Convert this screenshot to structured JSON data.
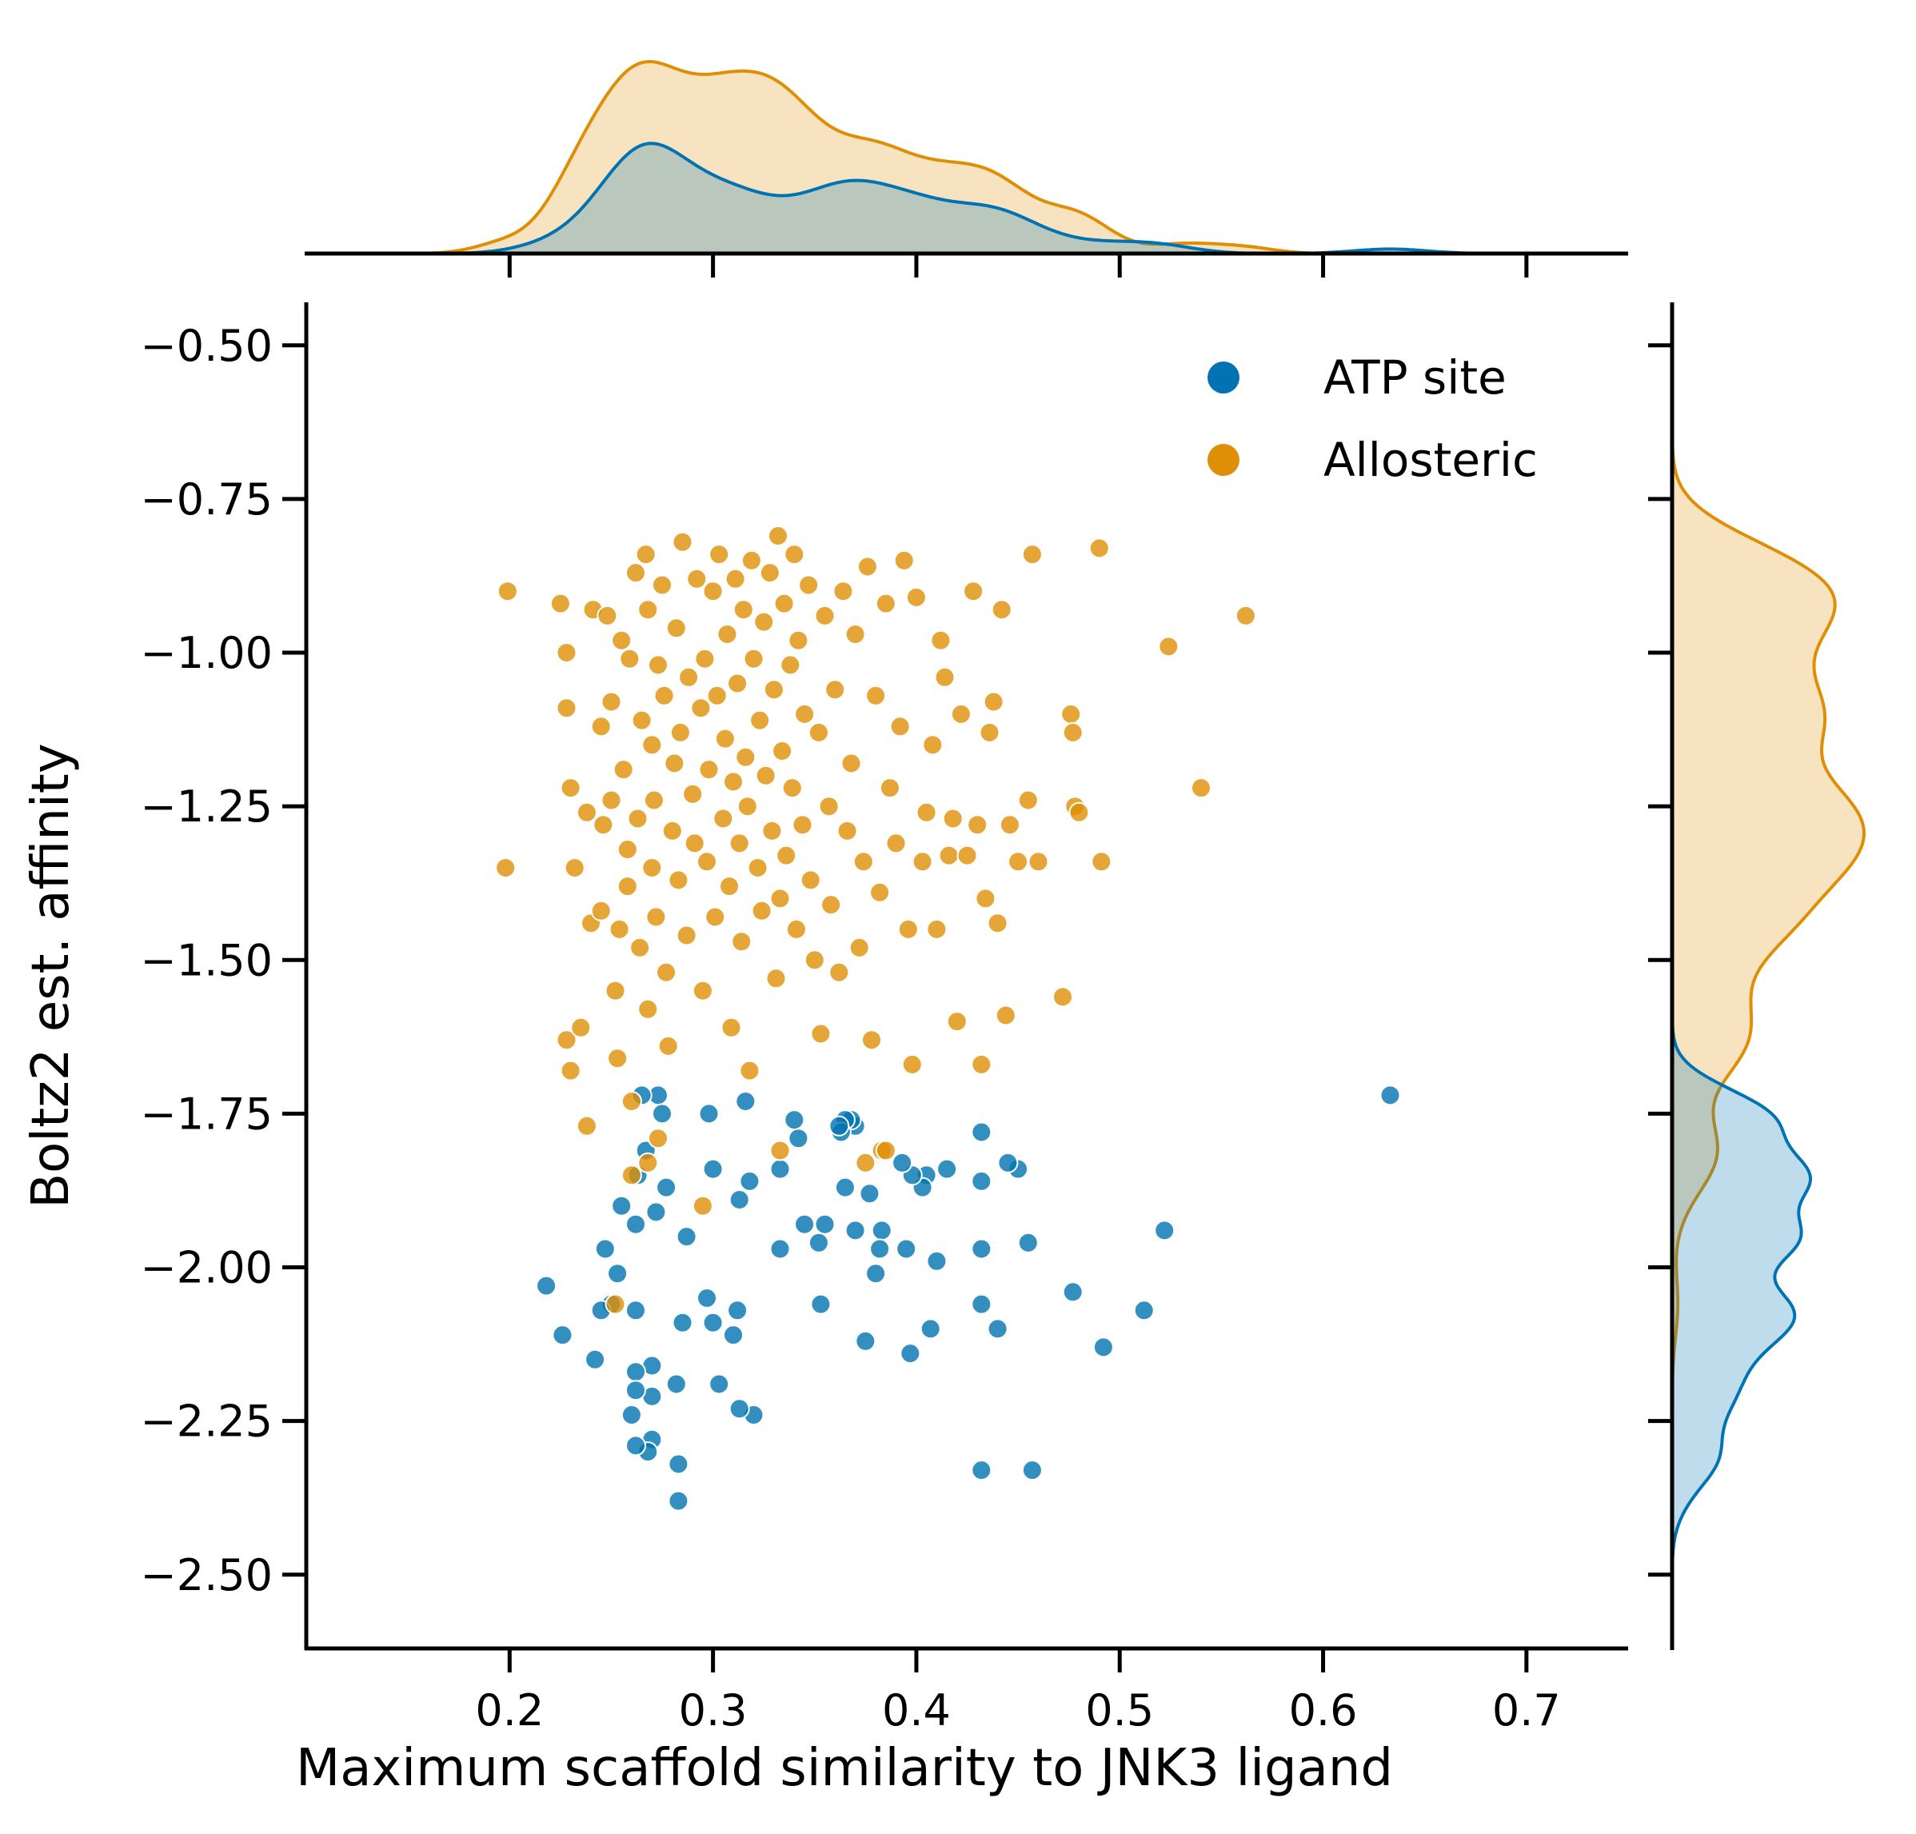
{
  "chart_data": {
    "type": "scatter",
    "xlabel": "Maximum scaffold similarity to JNK3 ligand",
    "ylabel": "Boltz2 est. affinity",
    "xlim": [
      0.1,
      0.75
    ],
    "ylim": [
      -2.62,
      -0.43
    ],
    "x_ticks": [
      0.2,
      0.3,
      0.4,
      0.5,
      0.6,
      0.7
    ],
    "x_tick_labels": [
      "0.2",
      "0.3",
      "0.4",
      "0.5",
      "0.6",
      "0.7"
    ],
    "y_ticks": [
      -0.5,
      -0.75,
      -1.0,
      -1.25,
      -1.5,
      -1.75,
      -2.0,
      -2.25,
      -2.5
    ],
    "y_tick_labels": [
      "−0.50",
      "−0.75",
      "−1.00",
      "−1.25",
      "−1.50",
      "−1.75",
      "−2.00",
      "−2.25",
      "−2.50"
    ],
    "grid": false,
    "legend_position": "top-right",
    "marginals": "kde on top (x) and right (y), filled per series",
    "colors": {
      "ATP site": "#0173b2",
      "Allosteric": "#de8f05"
    },
    "series": [
      {
        "name": "ATP site",
        "color": "#0173b2",
        "points": [
          [
            0.633,
            -1.72
          ],
          [
            0.522,
            -1.94
          ],
          [
            0.512,
            -2.07
          ],
          [
            0.492,
            -2.13
          ],
          [
            0.477,
            -2.04
          ],
          [
            0.457,
            -2.33
          ],
          [
            0.432,
            -2.33
          ],
          [
            0.455,
            -1.96
          ],
          [
            0.45,
            -1.84
          ],
          [
            0.445,
            -1.83
          ],
          [
            0.432,
            -1.78
          ],
          [
            0.432,
            -1.86
          ],
          [
            0.432,
            -1.97
          ],
          [
            0.432,
            -2.06
          ],
          [
            0.44,
            -2.1
          ],
          [
            0.415,
            -1.84
          ],
          [
            0.41,
            -1.99
          ],
          [
            0.407,
            -2.1
          ],
          [
            0.405,
            -1.85
          ],
          [
            0.403,
            -1.87
          ],
          [
            0.398,
            -1.85
          ],
          [
            0.397,
            -2.14
          ],
          [
            0.395,
            -1.97
          ],
          [
            0.393,
            -1.83
          ],
          [
            0.383,
            -1.94
          ],
          [
            0.382,
            -1.97
          ],
          [
            0.38,
            -2.01
          ],
          [
            0.377,
            -1.88
          ],
          [
            0.375,
            -2.12
          ],
          [
            0.37,
            -1.77
          ],
          [
            0.368,
            -1.76
          ],
          [
            0.365,
            -1.76
          ],
          [
            0.363,
            -1.78
          ],
          [
            0.365,
            -1.87
          ],
          [
            0.37,
            -1.94
          ],
          [
            0.362,
            -1.77
          ],
          [
            0.355,
            -1.93
          ],
          [
            0.352,
            -1.96
          ],
          [
            0.353,
            -2.06
          ],
          [
            0.345,
            -1.93
          ],
          [
            0.342,
            -1.79
          ],
          [
            0.34,
            -1.76
          ],
          [
            0.333,
            -1.84
          ],
          [
            0.333,
            -1.97
          ],
          [
            0.32,
            -2.24
          ],
          [
            0.318,
            -1.86
          ],
          [
            0.316,
            -1.73
          ],
          [
            0.313,
            -1.89
          ],
          [
            0.313,
            -2.23
          ],
          [
            0.312,
            -2.07
          ],
          [
            0.31,
            -2.11
          ],
          [
            0.303,
            -2.19
          ],
          [
            0.3,
            -1.84
          ],
          [
            0.298,
            -1.75
          ],
          [
            0.297,
            -2.05
          ],
          [
            0.3,
            -2.09
          ],
          [
            0.287,
            -1.95
          ],
          [
            0.285,
            -2.09
          ],
          [
            0.283,
            -2.32
          ],
          [
            0.283,
            -2.38
          ],
          [
            0.282,
            -2.19
          ],
          [
            0.277,
            -1.87
          ],
          [
            0.273,
            -1.72
          ],
          [
            0.275,
            -1.75
          ],
          [
            0.272,
            -1.91
          ],
          [
            0.27,
            -2.16
          ],
          [
            0.27,
            -2.21
          ],
          [
            0.27,
            -2.28
          ],
          [
            0.268,
            -2.3
          ],
          [
            0.267,
            -1.81
          ],
          [
            0.265,
            -1.72
          ],
          [
            0.263,
            -1.85
          ],
          [
            0.262,
            -1.93
          ],
          [
            0.262,
            -2.07
          ],
          [
            0.262,
            -2.17
          ],
          [
            0.262,
            -2.2
          ],
          [
            0.262,
            -2.29
          ],
          [
            0.26,
            -2.24
          ],
          [
            0.255,
            -1.9
          ],
          [
            0.253,
            -2.01
          ],
          [
            0.25,
            -2.06
          ],
          [
            0.247,
            -1.97
          ],
          [
            0.245,
            -2.07
          ],
          [
            0.242,
            -2.15
          ],
          [
            0.226,
            -2.11
          ],
          [
            0.218,
            -2.03
          ]
        ]
      },
      {
        "name": "Allosteric",
        "color": "#de8f05",
        "points": [
          [
            0.199,
            -0.9
          ],
          [
            0.198,
            -1.35
          ],
          [
            0.225,
            -0.92
          ],
          [
            0.228,
            -1.0
          ],
          [
            0.228,
            -1.09
          ],
          [
            0.23,
            -1.22
          ],
          [
            0.232,
            -1.35
          ],
          [
            0.228,
            -1.63
          ],
          [
            0.23,
            -1.68
          ],
          [
            0.235,
            -1.61
          ],
          [
            0.238,
            -1.77
          ],
          [
            0.238,
            -1.26
          ],
          [
            0.24,
            -1.44
          ],
          [
            0.241,
            -0.93
          ],
          [
            0.245,
            -1.42
          ],
          [
            0.245,
            -1.12
          ],
          [
            0.246,
            -1.28
          ],
          [
            0.248,
            -0.94
          ],
          [
            0.25,
            -1.24
          ],
          [
            0.25,
            -1.08
          ],
          [
            0.252,
            -1.55
          ],
          [
            0.253,
            -1.66
          ],
          [
            0.254,
            -1.45
          ],
          [
            0.255,
            -0.98
          ],
          [
            0.256,
            -1.19
          ],
          [
            0.258,
            -1.32
          ],
          [
            0.258,
            -1.38
          ],
          [
            0.259,
            -1.01
          ],
          [
            0.26,
            -1.73
          ],
          [
            0.262,
            -0.87
          ],
          [
            0.263,
            -1.27
          ],
          [
            0.264,
            -1.48
          ],
          [
            0.265,
            -1.11
          ],
          [
            0.267,
            -0.84
          ],
          [
            0.268,
            -1.58
          ],
          [
            0.268,
            -0.93
          ],
          [
            0.27,
            -1.35
          ],
          [
            0.27,
            -1.15
          ],
          [
            0.271,
            -1.24
          ],
          [
            0.272,
            -1.43
          ],
          [
            0.273,
            -1.79
          ],
          [
            0.273,
            -1.02
          ],
          [
            0.275,
            -0.89
          ],
          [
            0.276,
            -1.07
          ],
          [
            0.277,
            -1.52
          ],
          [
            0.278,
            -1.64
          ],
          [
            0.28,
            -1.29
          ],
          [
            0.281,
            -1.18
          ],
          [
            0.282,
            -0.96
          ],
          [
            0.283,
            -1.37
          ],
          [
            0.284,
            -1.13
          ],
          [
            0.285,
            -0.82
          ],
          [
            0.287,
            -1.46
          ],
          [
            0.288,
            -1.04
          ],
          [
            0.29,
            -1.23
          ],
          [
            0.291,
            -1.31
          ],
          [
            0.292,
            -0.88
          ],
          [
            0.294,
            -1.09
          ],
          [
            0.295,
            -1.55
          ],
          [
            0.296,
            -1.01
          ],
          [
            0.297,
            -1.34
          ],
          [
            0.298,
            -1.19
          ],
          [
            0.3,
            -0.9
          ],
          [
            0.301,
            -1.43
          ],
          [
            0.302,
            -1.07
          ],
          [
            0.303,
            -0.84
          ],
          [
            0.305,
            -1.27
          ],
          [
            0.306,
            -1.14
          ],
          [
            0.307,
            -0.97
          ],
          [
            0.308,
            -1.38
          ],
          [
            0.309,
            -1.61
          ],
          [
            0.31,
            -1.21
          ],
          [
            0.311,
            -0.88
          ],
          [
            0.312,
            -1.05
          ],
          [
            0.313,
            -1.31
          ],
          [
            0.314,
            -1.47
          ],
          [
            0.315,
            -0.93
          ],
          [
            0.316,
            -1.17
          ],
          [
            0.317,
            -1.25
          ],
          [
            0.318,
            -1.68
          ],
          [
            0.319,
            -0.85
          ],
          [
            0.32,
            -1.01
          ],
          [
            0.322,
            -1.35
          ],
          [
            0.323,
            -1.11
          ],
          [
            0.324,
            -1.42
          ],
          [
            0.325,
            -0.95
          ],
          [
            0.326,
            -1.2
          ],
          [
            0.328,
            -0.87
          ],
          [
            0.329,
            -1.29
          ],
          [
            0.33,
            -1.06
          ],
          [
            0.331,
            -1.53
          ],
          [
            0.332,
            -0.81
          ],
          [
            0.333,
            -1.4
          ],
          [
            0.334,
            -1.16
          ],
          [
            0.335,
            -0.92
          ],
          [
            0.336,
            -1.33
          ],
          [
            0.338,
            -1.02
          ],
          [
            0.339,
            -1.22
          ],
          [
            0.34,
            -0.84
          ],
          [
            0.341,
            -1.45
          ],
          [
            0.342,
            -0.98
          ],
          [
            0.344,
            -1.28
          ],
          [
            0.345,
            -1.1
          ],
          [
            0.347,
            -0.89
          ],
          [
            0.348,
            -1.37
          ],
          [
            0.35,
            -1.5
          ],
          [
            0.352,
            -1.13
          ],
          [
            0.353,
            -1.62
          ],
          [
            0.355,
            -0.94
          ],
          [
            0.357,
            -1.25
          ],
          [
            0.358,
            -1.41
          ],
          [
            0.36,
            -1.06
          ],
          [
            0.362,
            -1.52
          ],
          [
            0.364,
            -0.9
          ],
          [
            0.366,
            -1.29
          ],
          [
            0.368,
            -1.18
          ],
          [
            0.37,
            -0.97
          ],
          [
            0.372,
            -1.48
          ],
          [
            0.374,
            -1.34
          ],
          [
            0.376,
            -0.86
          ],
          [
            0.378,
            -1.63
          ],
          [
            0.38,
            -1.07
          ],
          [
            0.382,
            -1.39
          ],
          [
            0.383,
            -1.81
          ],
          [
            0.385,
            -0.92
          ],
          [
            0.387,
            -1.22
          ],
          [
            0.39,
            -1.31
          ],
          [
            0.392,
            -1.12
          ],
          [
            0.394,
            -0.85
          ],
          [
            0.396,
            -1.45
          ],
          [
            0.398,
            -1.67
          ],
          [
            0.4,
            -0.91
          ],
          [
            0.403,
            -1.34
          ],
          [
            0.405,
            -1.26
          ],
          [
            0.408,
            -1.15
          ],
          [
            0.41,
            -1.45
          ],
          [
            0.412,
            -0.98
          ],
          [
            0.414,
            -1.04
          ],
          [
            0.416,
            -1.33
          ],
          [
            0.418,
            -1.27
          ],
          [
            0.42,
            -1.6
          ],
          [
            0.422,
            -1.1
          ],
          [
            0.425,
            -1.33
          ],
          [
            0.428,
            -0.9
          ],
          [
            0.43,
            -1.28
          ],
          [
            0.432,
            -1.67
          ],
          [
            0.434,
            -1.4
          ],
          [
            0.436,
            -1.13
          ],
          [
            0.438,
            -1.08
          ],
          [
            0.44,
            -1.44
          ],
          [
            0.442,
            -0.93
          ],
          [
            0.444,
            -1.59
          ],
          [
            0.446,
            -1.28
          ],
          [
            0.45,
            -1.34
          ],
          [
            0.455,
            -1.24
          ],
          [
            0.457,
            -0.84
          ],
          [
            0.46,
            -1.34
          ],
          [
            0.472,
            -1.56
          ],
          [
            0.476,
            -1.1
          ],
          [
            0.477,
            -1.13
          ],
          [
            0.478,
            -1.25
          ],
          [
            0.48,
            -1.26
          ],
          [
            0.49,
            -0.83
          ],
          [
            0.491,
            -1.34
          ],
          [
            0.524,
            -0.99
          ],
          [
            0.54,
            -1.22
          ],
          [
            0.562,
            -0.94
          ],
          [
            0.295,
            -1.9
          ],
          [
            0.252,
            -2.06
          ],
          [
            0.268,
            -1.83
          ],
          [
            0.26,
            -1.85
          ],
          [
            0.375,
            -1.83
          ],
          [
            0.385,
            -1.81
          ],
          [
            0.333,
            -1.81
          ]
        ]
      }
    ]
  },
  "legend": {
    "items": [
      {
        "label": "ATP site",
        "color": "#0173b2"
      },
      {
        "label": "Allosteric",
        "color": "#de8f05"
      }
    ]
  }
}
